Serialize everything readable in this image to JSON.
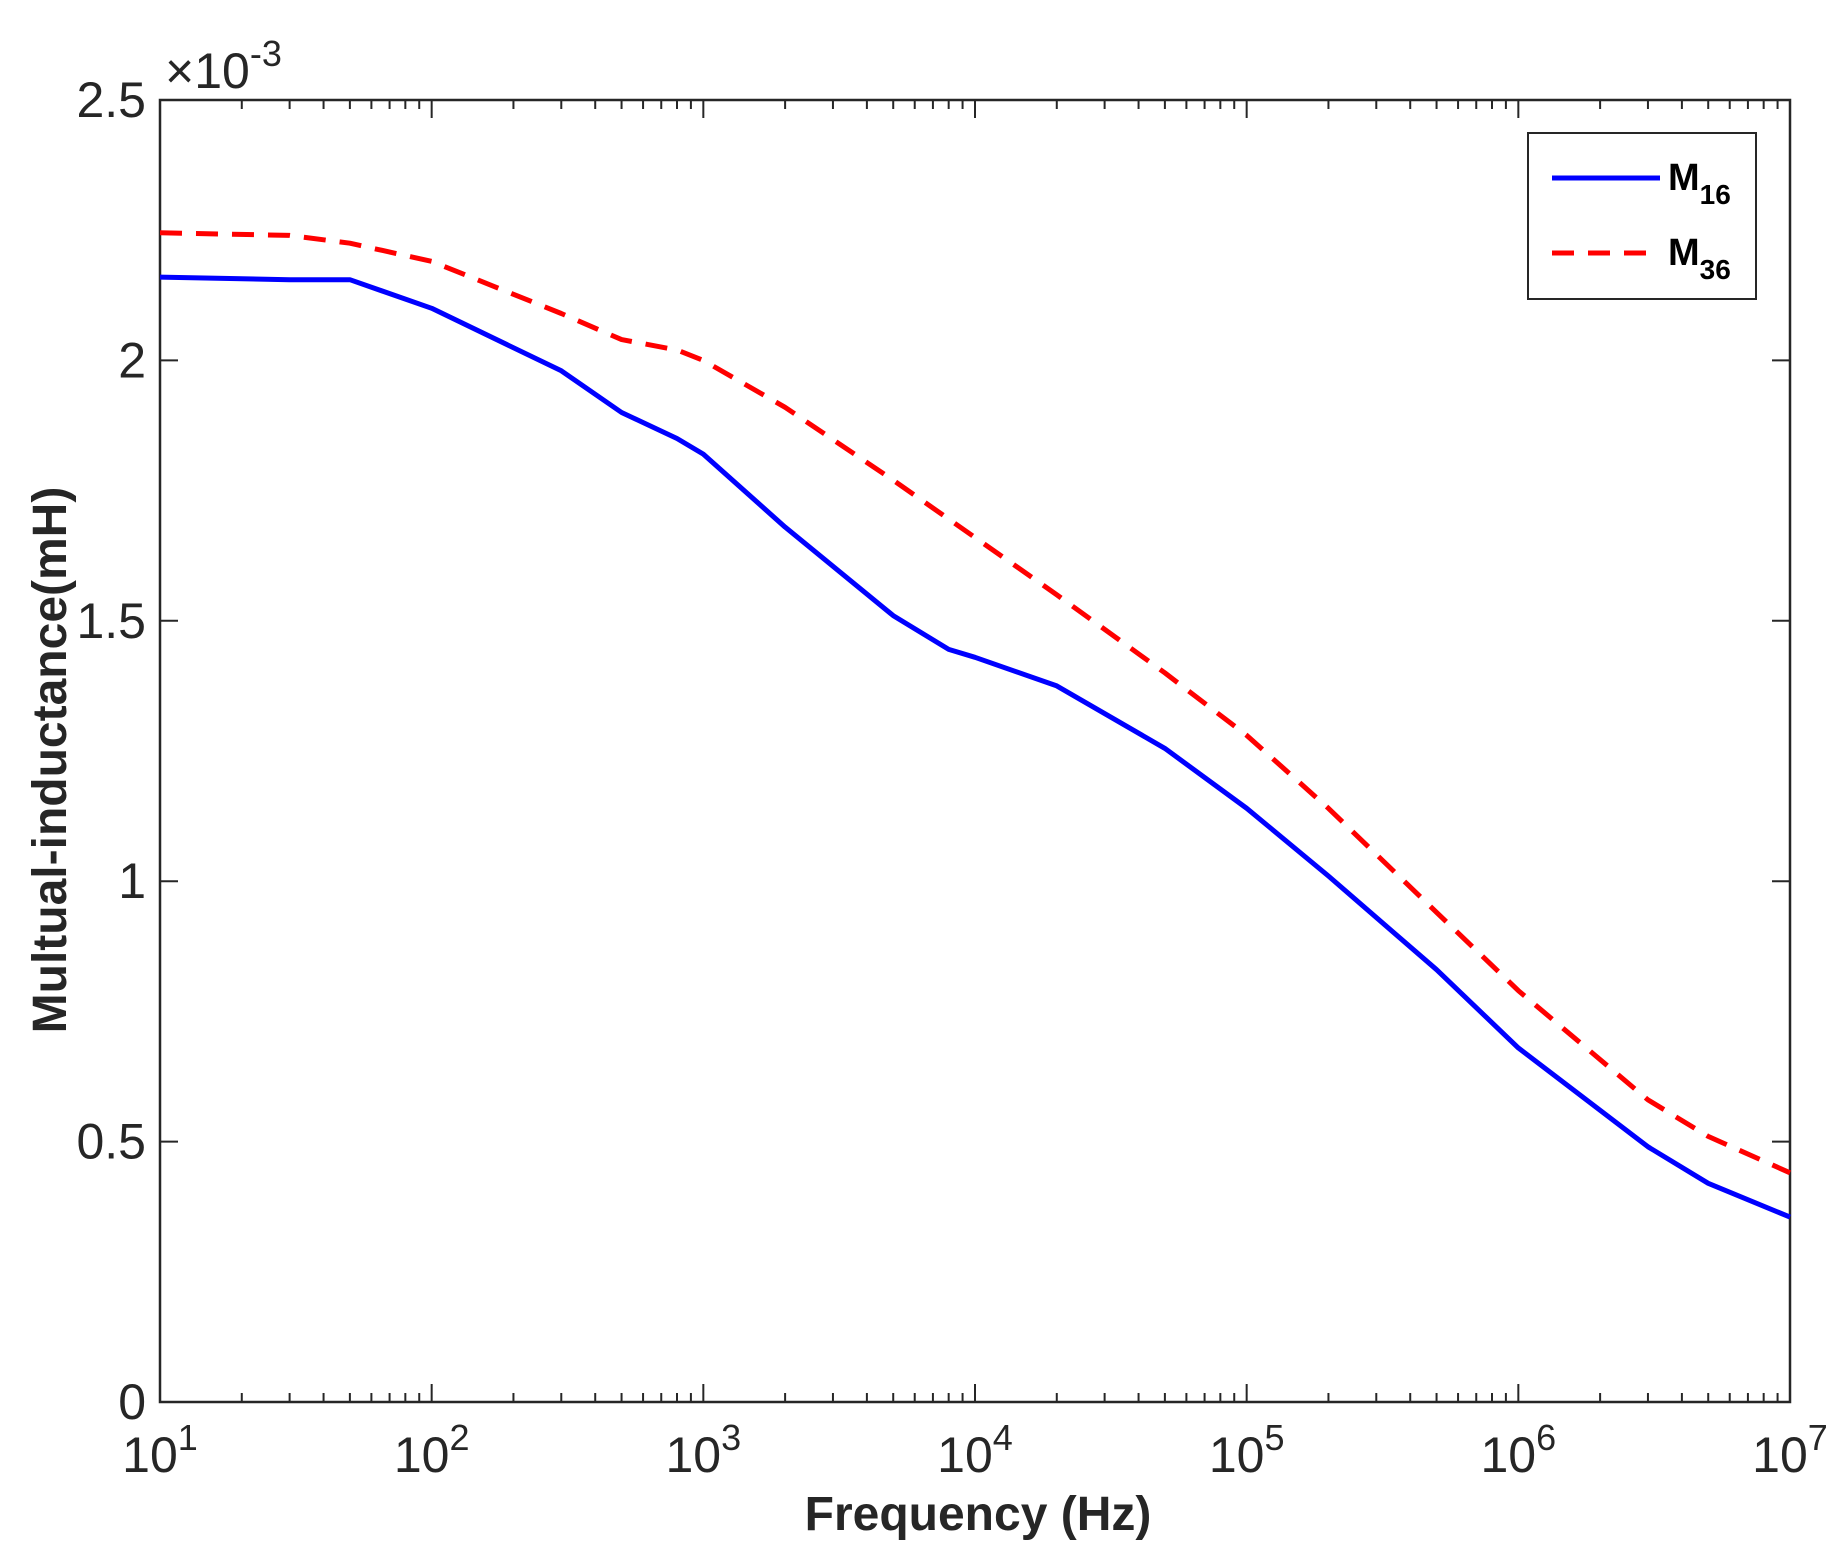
{
  "chart_data": {
    "type": "line",
    "xscale": "log",
    "xlabel": "Frequency (Hz)",
    "ylabel": "Multual-inductance(mH)",
    "exponent_label": {
      "base": "×10",
      "exp": "-3"
    },
    "xlim": [
      10,
      10000000
    ],
    "ylim": [
      0,
      0.0025
    ],
    "x_ticks": [
      {
        "value": 10,
        "base": "10",
        "exp": "1"
      },
      {
        "value": 100,
        "base": "10",
        "exp": "2"
      },
      {
        "value": 1000,
        "base": "10",
        "exp": "3"
      },
      {
        "value": 10000,
        "base": "10",
        "exp": "4"
      },
      {
        "value": 100000,
        "base": "10",
        "exp": "5"
      },
      {
        "value": 1000000,
        "base": "10",
        "exp": "6"
      },
      {
        "value": 10000000,
        "base": "10",
        "exp": "7"
      }
    ],
    "y_ticks": [
      {
        "value": 0,
        "label": "0"
      },
      {
        "value": 0.0005,
        "label": "0.5"
      },
      {
        "value": 0.001,
        "label": "1"
      },
      {
        "value": 0.0015,
        "label": "1.5"
      },
      {
        "value": 0.002,
        "label": "2"
      },
      {
        "value": 0.0025,
        "label": "2.5"
      }
    ],
    "grid": false,
    "legend_position": "top-right",
    "series": [
      {
        "name": "M",
        "subscript": "16",
        "color": "#0000ff",
        "style": "solid",
        "x": [
          10,
          30,
          50,
          100,
          300,
          500,
          800,
          1000,
          2000,
          5000,
          8000,
          10000,
          20000,
          50000,
          100000,
          200000,
          500000,
          1000000,
          3000000,
          5000000,
          10000000
        ],
        "y": [
          0.00216,
          0.002155,
          0.002155,
          0.0021,
          0.00198,
          0.0019,
          0.00185,
          0.00182,
          0.00168,
          0.00151,
          0.001445,
          0.00143,
          0.001375,
          0.001255,
          0.00114,
          0.00101,
          0.00083,
          0.00068,
          0.00049,
          0.00042,
          0.000355
        ]
      },
      {
        "name": "M",
        "subscript": "36",
        "color": "#ff0000",
        "style": "dashed",
        "x": [
          10,
          30,
          50,
          100,
          300,
          500,
          800,
          1000,
          2000,
          5000,
          10000,
          20000,
          50000,
          100000,
          200000,
          500000,
          1000000,
          3000000,
          5000000,
          10000000
        ],
        "y": [
          0.002245,
          0.00224,
          0.002225,
          0.00219,
          0.00209,
          0.00204,
          0.00202,
          0.002,
          0.00191,
          0.00177,
          0.00166,
          0.00155,
          0.0014,
          0.00128,
          0.00114,
          0.00094,
          0.00079,
          0.00058,
          0.00051,
          0.00044
        ]
      }
    ]
  }
}
